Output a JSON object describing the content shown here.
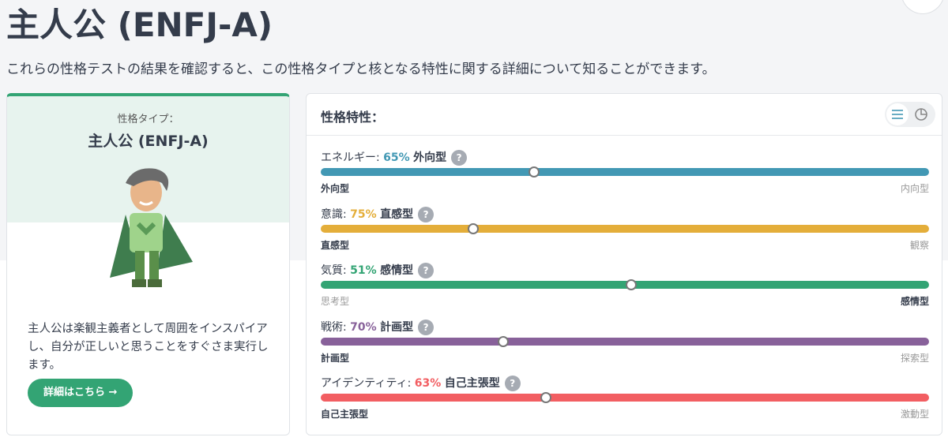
{
  "header": {
    "title": "主人公 (ENFJ-A)",
    "description": "これらの性格テストの結果を確認すると、この性格タイプと核となる特性に関する詳細について知ることができます。"
  },
  "type_card": {
    "label": "性格タイプ：",
    "name": "主人公 (ENFJ-A)",
    "description": "主人公は楽観主義者として周囲をインスパイアし、自分が正しいと思うことをすぐさま実行します。",
    "button": "詳細はこちら →"
  },
  "traits_panel": {
    "title": "性格特性：",
    "help_icon": "?",
    "traits": [
      {
        "name": "エネルギー:",
        "value": 65,
        "value_label": "65%",
        "trait": "外向型",
        "left": "外向型",
        "right": "内向型",
        "side": "left",
        "color": "#4298b4"
      },
      {
        "name": "意識:",
        "value": 75,
        "value_label": "75%",
        "trait": "直感型",
        "left": "直感型",
        "right": "観察",
        "side": "left",
        "color": "#e4ae3a"
      },
      {
        "name": "気質:",
        "value": 51,
        "value_label": "51%",
        "trait": "感情型",
        "left": "思考型",
        "right": "感情型",
        "side": "right",
        "color": "#33a474"
      },
      {
        "name": "戦術:",
        "value": 70,
        "value_label": "70%",
        "trait": "計画型",
        "left": "計画型",
        "right": "探索型",
        "side": "left",
        "color": "#88619a"
      },
      {
        "name": "アイデンティティ:",
        "value": 63,
        "value_label": "63%",
        "trait": "自己主張型",
        "left": "自己主張型",
        "right": "激動型",
        "side": "left",
        "color": "#f25e62"
      }
    ]
  }
}
